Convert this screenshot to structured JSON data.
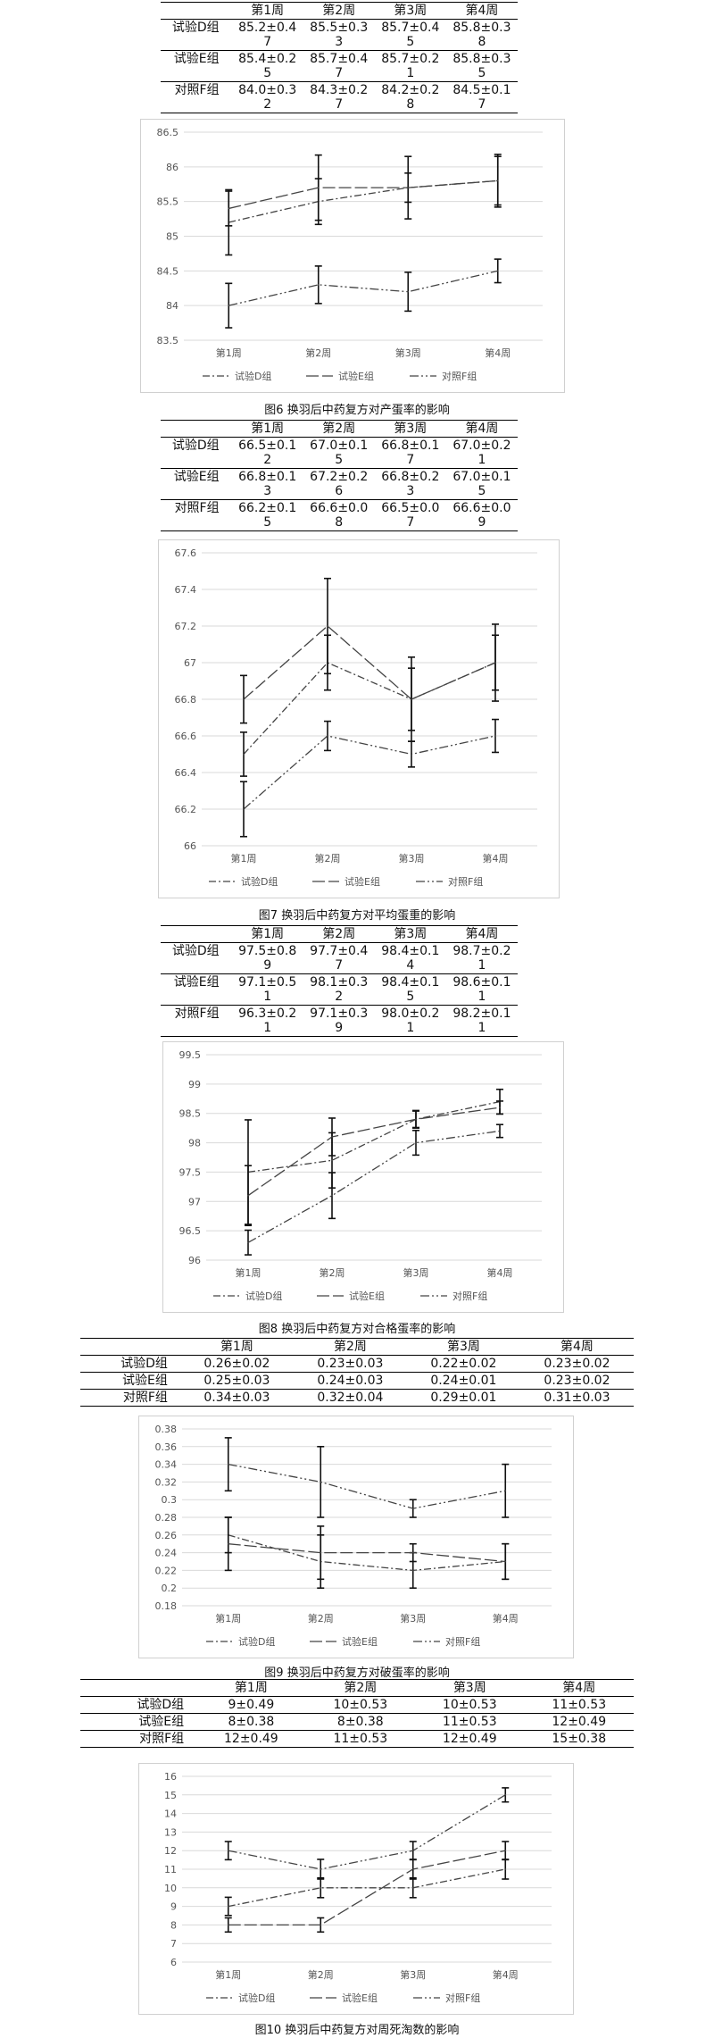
{
  "sections": [
    {
      "table": {
        "columns": [
          "",
          "第1周",
          "第2周",
          "第3周",
          "第4周"
        ],
        "rows": [
          {
            "label": "试验D组",
            "cells": [
              "85.2±0.4\n7",
              "85.5±0.3\n3",
              "85.7±0.4\n5",
              "85.8±0.3\n8"
            ]
          },
          {
            "label": "试验E组",
            "cells": [
              "85.4±0.2\n5",
              "85.7±0.4\n7",
              "85.7±0.2\n1",
              "85.8±0.3\n5"
            ]
          },
          {
            "label": "对照F组",
            "cells": [
              "84.0±0.3\n2",
              "84.3±0.2\n7",
              "84.2±0.2\n8",
              "84.5±0.1\n7"
            ]
          }
        ]
      },
      "caption": "图6 换羽后中药复方对产蛋率的影响"
    },
    {
      "table": {
        "columns": [
          "",
          "第1周",
          "第2周",
          "第3周",
          "第4周"
        ],
        "rows": [
          {
            "label": "试验D组",
            "cells": [
              "66.5±0.1\n2",
              "67.0±0.1\n5",
              "66.8±0.1\n7",
              "67.0±0.2\n1"
            ]
          },
          {
            "label": "试验E组",
            "cells": [
              "66.8±0.1\n3",
              "67.2±0.2\n6",
              "66.8±0.2\n3",
              "67.0±0.1\n5"
            ]
          },
          {
            "label": "对照F组",
            "cells": [
              "66.2±0.1\n5",
              "66.6±0.0\n8",
              "66.5±0.0\n7",
              "66.6±0.0\n9"
            ]
          }
        ]
      },
      "caption": "图7 换羽后中药复方对平均蛋重的影响"
    },
    {
      "table": {
        "columns": [
          "",
          "第1周",
          "第2周",
          "第3周",
          "第4周"
        ],
        "rows": [
          {
            "label": "试验D组",
            "cells": [
              "97.5±0.8\n9",
              "97.7±0.4\n7",
              "98.4±0.1\n4",
              "98.7±0.2\n1"
            ]
          },
          {
            "label": "试验E组",
            "cells": [
              "97.1±0.5\n1",
              "98.1±0.3\n2",
              "98.4±0.1\n5",
              "98.6±0.1\n1"
            ]
          },
          {
            "label": "对照F组",
            "cells": [
              "96.3±0.2\n1",
              "97.1±0.3\n9",
              "98.0±0.2\n1",
              "98.2±0.1\n1"
            ]
          }
        ]
      },
      "caption": "图8 换羽后中药复方对合格蛋率的影响"
    },
    {
      "table": {
        "columns": [
          "",
          "第1周",
          "第2周",
          "第3周",
          "第4周"
        ],
        "rows": [
          {
            "label": "试验D组",
            "cells": [
              "0.26±0.02",
              "0.23±0.03",
              "0.22±0.02",
              "0.23±0.02"
            ]
          },
          {
            "label": "试验E组",
            "cells": [
              "0.25±0.03",
              "0.24±0.03",
              "0.24±0.01",
              "0.23±0.02"
            ]
          },
          {
            "label": "对照F组",
            "cells": [
              "0.34±0.03",
              "0.32±0.04",
              "0.29±0.01",
              "0.31±0.03"
            ]
          }
        ]
      },
      "caption": "图9 换羽后中药复方对破蛋率的影响"
    },
    {
      "table": {
        "columns": [
          "",
          "第1周",
          "第2周",
          "第3周",
          "第4周"
        ],
        "rows": [
          {
            "label": "试验D组",
            "cells": [
              "9±0.49",
              "10±0.53",
              "10±0.53",
              "11±0.53"
            ]
          },
          {
            "label": "试验E组",
            "cells": [
              "8±0.38",
              "8±0.38",
              "11±0.53",
              "12±0.49"
            ]
          },
          {
            "label": "对照F组",
            "cells": [
              "12±0.49",
              "11±0.53",
              "12±0.49",
              "15±0.38"
            ]
          }
        ]
      },
      "caption": "图10 换羽后中药复方对周死淘数的影响"
    }
  ],
  "chart_data": [
    {
      "type": "line",
      "categories": [
        "第1周",
        "第2周",
        "第3周",
        "第4周"
      ],
      "ylim": [
        83.5,
        86.5
      ],
      "yticks": [
        "83.5",
        "84",
        "84.5",
        "85",
        "85.5",
        "86",
        "86.5"
      ],
      "grid": true,
      "legend": "bottom",
      "series": [
        {
          "name": "试验D组",
          "values": [
            85.2,
            85.5,
            85.7,
            85.8
          ],
          "errors": [
            0.47,
            0.33,
            0.45,
            0.38
          ],
          "dash": "8,3,2,3"
        },
        {
          "name": "试验E组",
          "values": [
            85.4,
            85.7,
            85.7,
            85.8
          ],
          "errors": [
            0.25,
            0.47,
            0.21,
            0.35
          ],
          "dash": "14,4"
        },
        {
          "name": "对照F组",
          "values": [
            84.0,
            84.3,
            84.2,
            84.5
          ],
          "errors": [
            0.32,
            0.27,
            0.28,
            0.17
          ],
          "dash": "10,3,2,3,2,3"
        }
      ]
    },
    {
      "type": "line",
      "categories": [
        "第1周",
        "第2周",
        "第3周",
        "第4周"
      ],
      "ylim": [
        66,
        67.6
      ],
      "yticks": [
        "66",
        "66.2",
        "66.4",
        "66.6",
        "66.8",
        "67",
        "67.2",
        "67.4",
        "67.6"
      ],
      "grid": true,
      "legend": "bottom",
      "series": [
        {
          "name": "试验D组",
          "values": [
            66.5,
            67.0,
            66.8,
            67.0
          ],
          "errors": [
            0.12,
            0.15,
            0.17,
            0.21
          ],
          "dash": "8,3,2,3"
        },
        {
          "name": "试验E组",
          "values": [
            66.8,
            67.2,
            66.8,
            67.0
          ],
          "errors": [
            0.13,
            0.26,
            0.23,
            0.15
          ],
          "dash": "14,4"
        },
        {
          "name": "对照F组",
          "values": [
            66.2,
            66.6,
            66.5,
            66.6
          ],
          "errors": [
            0.15,
            0.08,
            0.07,
            0.09
          ],
          "dash": "10,3,2,3,2,3"
        }
      ]
    },
    {
      "type": "line",
      "categories": [
        "第1周",
        "第2周",
        "第3周",
        "第4周"
      ],
      "ylim": [
        96,
        99.5
      ],
      "yticks": [
        "96",
        "96.5",
        "97",
        "97.5",
        "98",
        "98.5",
        "99",
        "99.5"
      ],
      "grid": true,
      "legend": "bottom",
      "series": [
        {
          "name": "试验D组",
          "values": [
            97.5,
            97.7,
            98.4,
            98.7
          ],
          "errors": [
            0.89,
            0.47,
            0.14,
            0.21
          ],
          "dash": "8,3,2,3"
        },
        {
          "name": "试验E组",
          "values": [
            97.1,
            98.1,
            98.4,
            98.6
          ],
          "errors": [
            0.51,
            0.32,
            0.15,
            0.11
          ],
          "dash": "14,4"
        },
        {
          "name": "对照F组",
          "values": [
            96.3,
            97.1,
            98.0,
            98.2
          ],
          "errors": [
            0.21,
            0.39,
            0.21,
            0.11
          ],
          "dash": "10,3,2,3,2,3"
        }
      ]
    },
    {
      "type": "line",
      "categories": [
        "第1周",
        "第2周",
        "第3周",
        "第4周"
      ],
      "ylim": [
        0.18,
        0.38
      ],
      "yticks": [
        "0.18",
        "0.2",
        "0.22",
        "0.24",
        "0.26",
        "0.28",
        "0.3",
        "0.32",
        "0.34",
        "0.36",
        "0.38"
      ],
      "grid": true,
      "legend": "bottom",
      "series": [
        {
          "name": "试验D组",
          "values": [
            0.26,
            0.23,
            0.22,
            0.23
          ],
          "errors": [
            0.02,
            0.03,
            0.02,
            0.02
          ],
          "dash": "8,3,2,3"
        },
        {
          "name": "试验E组",
          "values": [
            0.25,
            0.24,
            0.24,
            0.23
          ],
          "errors": [
            0.03,
            0.03,
            0.01,
            0.02
          ],
          "dash": "14,4"
        },
        {
          "name": "对照F组",
          "values": [
            0.34,
            0.32,
            0.29,
            0.31
          ],
          "errors": [
            0.03,
            0.04,
            0.01,
            0.03
          ],
          "dash": "10,3,2,3,2,3"
        }
      ]
    },
    {
      "type": "line",
      "categories": [
        "第1周",
        "第2周",
        "第3周",
        "第4周"
      ],
      "ylim": [
        6,
        16
      ],
      "yticks": [
        "6",
        "7",
        "8",
        "9",
        "10",
        "11",
        "12",
        "13",
        "14",
        "15",
        "16"
      ],
      "grid": true,
      "legend": "bottom",
      "series": [
        {
          "name": "试验D组",
          "values": [
            9,
            10,
            10,
            11
          ],
          "errors": [
            0.49,
            0.53,
            0.53,
            0.53
          ],
          "dash": "8,3,2,3"
        },
        {
          "name": "试验E组",
          "values": [
            8,
            8,
            11,
            12
          ],
          "errors": [
            0.38,
            0.38,
            0.53,
            0.49
          ],
          "dash": "14,4"
        },
        {
          "name": "对照F组",
          "values": [
            12,
            11,
            12,
            15
          ],
          "errors": [
            0.49,
            0.53,
            0.49,
            0.38
          ],
          "dash": "10,3,2,3,2,3"
        }
      ]
    }
  ]
}
